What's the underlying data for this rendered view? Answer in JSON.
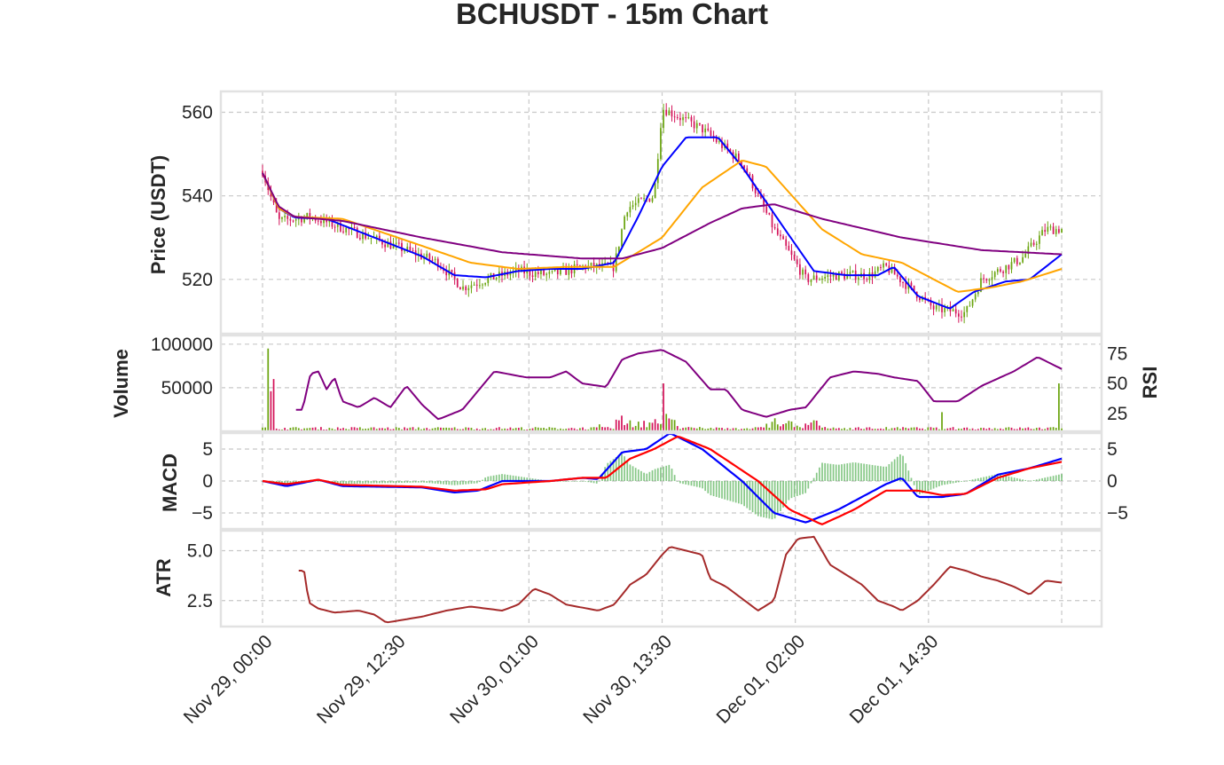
{
  "title": "BCHUSDT - 15m Chart",
  "x_tick_labels": [
    "Nov 29, 00:00",
    "Nov 29, 12:30",
    "Nov 30, 01:00",
    "Nov 30, 13:30",
    "Dec 01, 02:00",
    "Dec 01, 14:30"
  ],
  "colors": {
    "up_candle": "#6aa40f",
    "down_candle": "#d4145a",
    "ma_fast": "#0000ff",
    "ma_mid": "#ffa500",
    "ma_slow": "#800080",
    "rsi": "#800080",
    "macd": "#0000ff",
    "signal": "#ff0000",
    "histogram": "#5fb55f",
    "atr": "#a52a2a",
    "grid": "#c8c8c8"
  },
  "chart_data": [
    {
      "type": "candlestick",
      "ylabel": "Price (USDT)",
      "ylim": [
        507,
        565
      ],
      "yticks": [
        520,
        540,
        560
      ],
      "grid": true,
      "time_range": [
        "Nov 29, 00:00",
        "Dec 02, 03:00"
      ],
      "close_anchors": [
        [
          0,
          546
        ],
        [
          0.02,
          534
        ],
        [
          0.06,
          535
        ],
        [
          0.12,
          531
        ],
        [
          0.18,
          527
        ],
        [
          0.22,
          524
        ],
        [
          0.25,
          518
        ],
        [
          0.28,
          520
        ],
        [
          0.32,
          522
        ],
        [
          0.36,
          521
        ],
        [
          0.4,
          523
        ],
        [
          0.44,
          523
        ],
        [
          0.455,
          537
        ],
        [
          0.49,
          540
        ],
        [
          0.5,
          561
        ],
        [
          0.52,
          559
        ],
        [
          0.55,
          556
        ],
        [
          0.6,
          548
        ],
        [
          0.64,
          532
        ],
        [
          0.68,
          520
        ],
        [
          0.72,
          521
        ],
        [
          0.76,
          521
        ],
        [
          0.78,
          523
        ],
        [
          0.84,
          513
        ],
        [
          0.88,
          512
        ],
        [
          0.9,
          520
        ],
        [
          0.95,
          525
        ],
        [
          0.98,
          532
        ],
        [
          1.0,
          532
        ]
      ],
      "series": [
        {
          "name": "",
          "color": "#0000ff",
          "anchors": [
            [
              0,
              545.5
            ],
            [
              0.02,
              537
            ],
            [
              0.04,
              534.8
            ],
            [
              0.08,
              534.5
            ],
            [
              0.14,
              530
            ],
            [
              0.2,
              525.5
            ],
            [
              0.24,
              521
            ],
            [
              0.28,
              520.5
            ],
            [
              0.32,
              522
            ],
            [
              0.36,
              522.5
            ],
            [
              0.4,
              522.5
            ],
            [
              0.44,
              524
            ],
            [
              0.47,
              535
            ],
            [
              0.5,
              547
            ],
            [
              0.53,
              554
            ],
            [
              0.57,
              554
            ],
            [
              0.6,
              547
            ],
            [
              0.65,
              533
            ],
            [
              0.69,
              522
            ],
            [
              0.73,
              521
            ],
            [
              0.77,
              521
            ],
            [
              0.79,
              523
            ],
            [
              0.82,
              516
            ],
            [
              0.86,
              513
            ],
            [
              0.89,
              517
            ],
            [
              0.93,
              519.5
            ],
            [
              0.96,
              520
            ],
            [
              1.0,
              526
            ]
          ]
        },
        {
          "name": "",
          "color": "#ffa500",
          "anchors": [
            [
              0,
              545.5
            ],
            [
              0.02,
              537
            ],
            [
              0.04,
              535
            ],
            [
              0.1,
              534.5
            ],
            [
              0.2,
              528
            ],
            [
              0.26,
              524
            ],
            [
              0.32,
              522.5
            ],
            [
              0.38,
              523
            ],
            [
              0.44,
              523
            ],
            [
              0.5,
              530
            ],
            [
              0.55,
              542
            ],
            [
              0.6,
              548.5
            ],
            [
              0.63,
              547
            ],
            [
              0.7,
              532
            ],
            [
              0.75,
              526
            ],
            [
              0.8,
              524
            ],
            [
              0.84,
              520
            ],
            [
              0.87,
              517
            ],
            [
              0.91,
              518
            ],
            [
              0.95,
              519.5
            ],
            [
              1.0,
              522.5
            ]
          ]
        },
        {
          "name": "",
          "color": "#800080",
          "anchors": [
            [
              0,
              545.5
            ],
            [
              0.02,
              537.5
            ],
            [
              0.04,
              535
            ],
            [
              0.1,
              534
            ],
            [
              0.2,
              530
            ],
            [
              0.3,
              526.5
            ],
            [
              0.4,
              525
            ],
            [
              0.45,
              525
            ],
            [
              0.5,
              527.5
            ],
            [
              0.56,
              533.5
            ],
            [
              0.6,
              537
            ],
            [
              0.64,
              538
            ],
            [
              0.7,
              534.5
            ],
            [
              0.8,
              530
            ],
            [
              0.9,
              527
            ],
            [
              1.0,
              526
            ]
          ]
        }
      ]
    },
    {
      "type": "bar",
      "ylabel": "Volume",
      "ylim": [
        0,
        110000
      ],
      "yticks": [
        50000,
        100000
      ],
      "spikes": [
        [
          0.008,
          95000
        ],
        [
          0.01,
          46000
        ],
        [
          0.013,
          60000
        ],
        [
          0.502,
          55000
        ],
        [
          0.45,
          18000
        ],
        [
          0.505,
          20000
        ],
        [
          0.64,
          15000
        ],
        [
          0.85,
          22000
        ],
        [
          0.995,
          55000
        ],
        [
          0.42,
          8000
        ]
      ]
    },
    {
      "type": "line",
      "ylabel": "RSI",
      "ylim": [
        10,
        90
      ],
      "yticks": [
        25,
        50,
        75
      ],
      "series": [
        {
          "name": "",
          "color": "#800080",
          "anchors": [
            [
              0.04,
              28
            ],
            [
              0.05,
              28
            ],
            [
              0.06,
              58
            ],
            [
              0.07,
              60
            ],
            [
              0.08,
              45
            ],
            [
              0.09,
              55
            ],
            [
              0.1,
              35
            ],
            [
              0.12,
              30
            ],
            [
              0.14,
              38
            ],
            [
              0.16,
              30
            ],
            [
              0.18,
              48
            ],
            [
              0.2,
              32
            ],
            [
              0.22,
              20
            ],
            [
              0.25,
              28
            ],
            [
              0.29,
              60
            ],
            [
              0.33,
              55
            ],
            [
              0.36,
              55
            ],
            [
              0.38,
              60
            ],
            [
              0.4,
              50
            ],
            [
              0.43,
              47
            ],
            [
              0.45,
              70
            ],
            [
              0.47,
              75
            ],
            [
              0.5,
              78
            ],
            [
              0.53,
              68
            ],
            [
              0.56,
              45
            ],
            [
              0.58,
              45
            ],
            [
              0.6,
              28
            ],
            [
              0.63,
              22
            ],
            [
              0.66,
              28
            ],
            [
              0.68,
              30
            ],
            [
              0.71,
              55
            ],
            [
              0.74,
              60
            ],
            [
              0.77,
              58
            ],
            [
              0.79,
              55
            ],
            [
              0.82,
              52
            ],
            [
              0.84,
              35
            ],
            [
              0.87,
              35
            ],
            [
              0.9,
              48
            ],
            [
              0.94,
              60
            ],
            [
              0.97,
              72
            ],
            [
              1.0,
              62
            ]
          ]
        }
      ]
    },
    {
      "type": "line",
      "ylabel": "MACD",
      "ylim": [
        -7.5,
        7.5
      ],
      "yticks": [
        -5,
        0,
        5
      ],
      "series": [
        {
          "name": "",
          "color": "#0000ff",
          "anchors": [
            [
              0,
              0
            ],
            [
              0.03,
              -0.8
            ],
            [
              0.07,
              0.2
            ],
            [
              0.1,
              -0.8
            ],
            [
              0.2,
              -1.0
            ],
            [
              0.24,
              -1.8
            ],
            [
              0.27,
              -1.5
            ],
            [
              0.3,
              0
            ],
            [
              0.36,
              0
            ],
            [
              0.4,
              0.5
            ],
            [
              0.42,
              0.3
            ],
            [
              0.45,
              4.5
            ],
            [
              0.48,
              5
            ],
            [
              0.51,
              7.5
            ],
            [
              0.55,
              5
            ],
            [
              0.6,
              0
            ],
            [
              0.64,
              -5
            ],
            [
              0.68,
              -6.5
            ],
            [
              0.72,
              -4.5
            ],
            [
              0.75,
              -2.5
            ],
            [
              0.78,
              -0.5
            ],
            [
              0.8,
              0.5
            ],
            [
              0.82,
              -2.5
            ],
            [
              0.85,
              -2.5
            ],
            [
              0.88,
              -2.0
            ],
            [
              0.92,
              1.0
            ],
            [
              0.96,
              2.0
            ],
            [
              1.0,
              3.5
            ]
          ]
        },
        {
          "name": "",
          "color": "#ff0000",
          "anchors": [
            [
              0,
              0
            ],
            [
              0.03,
              -0.5
            ],
            [
              0.07,
              0.2
            ],
            [
              0.1,
              -0.6
            ],
            [
              0.2,
              -0.9
            ],
            [
              0.24,
              -1.5
            ],
            [
              0.28,
              -1.3
            ],
            [
              0.3,
              -0.5
            ],
            [
              0.36,
              0
            ],
            [
              0.4,
              0.5
            ],
            [
              0.43,
              0.5
            ],
            [
              0.46,
              3.5
            ],
            [
              0.49,
              5
            ],
            [
              0.52,
              7.0
            ],
            [
              0.56,
              5
            ],
            [
              0.62,
              0
            ],
            [
              0.66,
              -4.5
            ],
            [
              0.7,
              -6.8
            ],
            [
              0.74,
              -4.5
            ],
            [
              0.78,
              -1.5
            ],
            [
              0.82,
              -1.5
            ],
            [
              0.85,
              -2.2
            ],
            [
              0.88,
              -2.0
            ],
            [
              0.92,
              0.5
            ],
            [
              0.96,
              2.0
            ],
            [
              1.0,
              3.0
            ]
          ]
        }
      ],
      "histogram_color": "#5fb55f"
    },
    {
      "type": "line",
      "ylabel": "ATR",
      "ylim": [
        1.2,
        6.0
      ],
      "yticks": [
        2.5,
        5.0
      ],
      "series": [
        {
          "name": "",
          "color": "#a52a2a",
          "anchors": [
            [
              0.045,
              4.0
            ],
            [
              0.052,
              4.0
            ],
            [
              0.058,
              2.4
            ],
            [
              0.07,
              2.1
            ],
            [
              0.09,
              1.9
            ],
            [
              0.12,
              2.0
            ],
            [
              0.14,
              1.8
            ],
            [
              0.155,
              1.4
            ],
            [
              0.17,
              1.5
            ],
            [
              0.2,
              1.7
            ],
            [
              0.23,
              2.0
            ],
            [
              0.26,
              2.2
            ],
            [
              0.28,
              2.1
            ],
            [
              0.3,
              2.0
            ],
            [
              0.32,
              2.3
            ],
            [
              0.34,
              3.1
            ],
            [
              0.36,
              2.8
            ],
            [
              0.38,
              2.3
            ],
            [
              0.42,
              2.0
            ],
            [
              0.44,
              2.3
            ],
            [
              0.46,
              3.3
            ],
            [
              0.48,
              3.8
            ],
            [
              0.5,
              4.8
            ],
            [
              0.51,
              5.2
            ],
            [
              0.53,
              5.0
            ],
            [
              0.55,
              4.8
            ],
            [
              0.56,
              3.6
            ],
            [
              0.58,
              3.2
            ],
            [
              0.6,
              2.6
            ],
            [
              0.62,
              2.0
            ],
            [
              0.64,
              2.5
            ],
            [
              0.655,
              4.8
            ],
            [
              0.67,
              5.6
            ],
            [
              0.69,
              5.7
            ],
            [
              0.71,
              4.3
            ],
            [
              0.73,
              3.8
            ],
            [
              0.75,
              3.3
            ],
            [
              0.77,
              2.5
            ],
            [
              0.79,
              2.2
            ],
            [
              0.8,
              2.0
            ],
            [
              0.82,
              2.5
            ],
            [
              0.84,
              3.3
            ],
            [
              0.86,
              4.2
            ],
            [
              0.88,
              4.0
            ],
            [
              0.9,
              3.7
            ],
            [
              0.92,
              3.5
            ],
            [
              0.94,
              3.2
            ],
            [
              0.96,
              2.8
            ],
            [
              0.98,
              3.5
            ],
            [
              1.0,
              3.4
            ]
          ]
        }
      ]
    }
  ]
}
